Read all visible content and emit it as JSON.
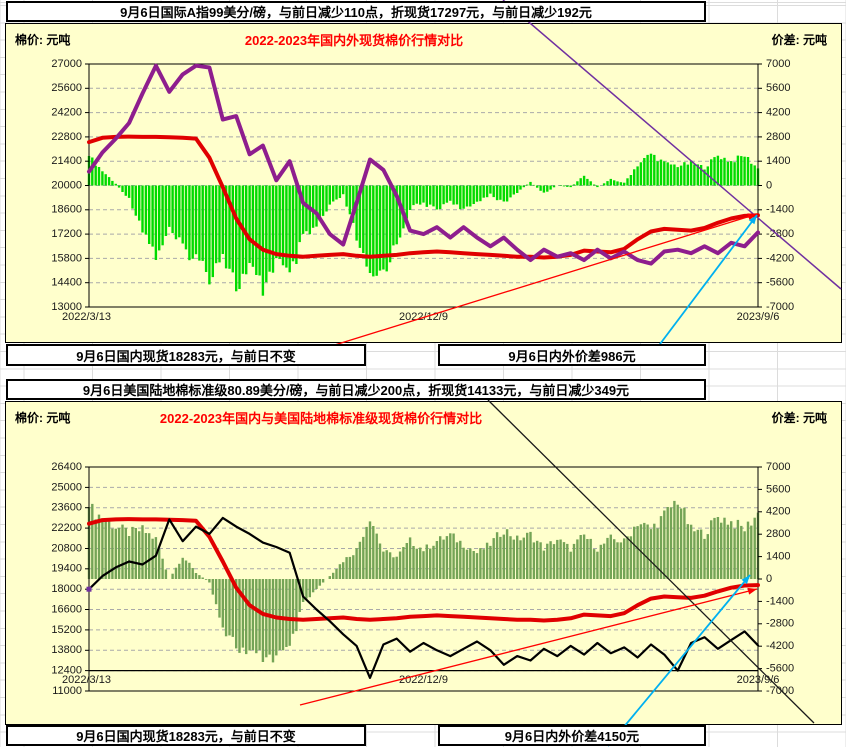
{
  "page": {
    "excel_grid_color": "#DCDCDC",
    "chart_background": "#FFFFCC",
    "title_color": "#FF0000"
  },
  "sections": [
    {
      "header": "9月6日国际A指99美分/磅，与前日减少110点，折现货17297元，与前日减少192元",
      "footer_left": "9月6日国内现货18283元，与前日不变",
      "footer_right": "9月6日内外价差986元"
    },
    {
      "header": "9月6日美国陆地棉标准级80.89美分/磅，与前日减少200点，折现货14133元，与前日减少349元",
      "footer_left": "9月6日国内现货18283元，与前日不变",
      "footer_right": "9月6日内外价差4150元"
    }
  ],
  "chart_data": [
    {
      "type": "line+bar",
      "title": "2022-2023年国内外现货棉价行情对比",
      "left_axis_label": "棉价: 元吨",
      "right_axis_label": "价差: 元吨",
      "x_ticks": [
        "2022/3/13",
        "2022/12/9",
        "2023/9/6"
      ],
      "left_axis": {
        "min": 13000,
        "max": 27000,
        "step": 1400
      },
      "right_axis": {
        "min": -7000,
        "max": 7000,
        "step": 1400
      },
      "grid": true,
      "legend_position": "none",
      "series": [
        {
          "name": "国内现货",
          "type": "line",
          "axis": "left",
          "color": "#E00000",
          "width": 4,
          "values": [
            22500,
            22750,
            22800,
            22820,
            22800,
            22800,
            22780,
            22750,
            22700,
            21600,
            19900,
            18100,
            16900,
            16300,
            16050,
            15950,
            15900,
            15950,
            16000,
            16050,
            15950,
            15900,
            15950,
            16000,
            16100,
            16150,
            16200,
            16150,
            16100,
            16050,
            16000,
            15950,
            15900,
            15900,
            15850,
            15900,
            16000,
            16250,
            16200,
            16150,
            16350,
            16900,
            17350,
            17500,
            17450,
            17400,
            17550,
            17850,
            18100,
            18250,
            18283
          ]
        },
        {
          "name": "国际A指折现货",
          "type": "line",
          "axis": "left",
          "color": "#8E1E8E",
          "width": 4,
          "values": [
            20800,
            21900,
            22700,
            23600,
            25300,
            26900,
            25400,
            26400,
            26900,
            26800,
            23800,
            24000,
            21800,
            22300,
            20300,
            21400,
            19000,
            18400,
            17200,
            16600,
            19000,
            21500,
            20900,
            19400,
            17400,
            17200,
            17600,
            17000,
            17600,
            17000,
            16500,
            17000,
            16300,
            15700,
            16300,
            15900,
            16100,
            15700,
            16300,
            15800,
            16200,
            15700,
            15500,
            16200,
            16300,
            16100,
            16500,
            16100,
            16700,
            16500,
            17297
          ]
        },
        {
          "name": "内外价差",
          "type": "bar",
          "axis": "right",
          "color": "#00DB00",
          "values": [
            1700,
            850,
            100,
            -780,
            -2500,
            -4100,
            -2620,
            -3650,
            -4200,
            -5200,
            -3900,
            -5900,
            -4900,
            -6000,
            -4250,
            -5450,
            -3100,
            -2450,
            -1200,
            -550,
            -3050,
            -5600,
            -4950,
            -3400,
            -1300,
            -1050,
            -1400,
            -850,
            -1500,
            -950,
            -500,
            -1050,
            -400,
            200,
            -450,
            0,
            -100,
            550,
            -100,
            350,
            150,
            1200,
            1850,
            1300,
            1150,
            1300,
            1050,
            1750,
            1400,
            1750,
            986
          ]
        }
      ],
      "annotations": [
        {
          "color": "#7030A0",
          "width": 1.5,
          "from": [
            503,
            0
          ],
          "to": [
            841,
            289
          ],
          "arrow": false
        },
        {
          "color": "#FF0000",
          "width": 1.3,
          "from": [
            280,
            362
          ],
          "to": [
            757,
            214
          ],
          "arrow": true
        },
        {
          "color": "#00B0F0",
          "width": 1.8,
          "from": [
            648,
            360
          ],
          "to": [
            757,
            215
          ],
          "arrow": true
        }
      ]
    },
    {
      "type": "line+bar",
      "title": "2022-2023年国内与美国陆地棉标准级现货棉价行情对比",
      "left_axis_label": "棉价: 元吨",
      "right_axis_label": "价差: 元吨",
      "x_ticks": [
        "2022/3/13",
        "2022/12/9",
        "2023/9/6"
      ],
      "left_axis": {
        "min": 11000,
        "max": 26400,
        "step": 1400,
        "axis_cross_value": 12400
      },
      "right_axis": {
        "min": -7000,
        "max": 7000,
        "step": 1400
      },
      "grid": true,
      "legend_position": "none",
      "start_marker_color": "#7030A0",
      "series": [
        {
          "name": "国内现货",
          "type": "line",
          "axis": "left",
          "color": "#E00000",
          "width": 4,
          "values": [
            22500,
            22750,
            22800,
            22820,
            22800,
            22800,
            22780,
            22750,
            22700,
            21600,
            19900,
            18100,
            16900,
            16300,
            16050,
            15950,
            15900,
            15950,
            16000,
            16050,
            15950,
            15900,
            15950,
            16000,
            16100,
            16150,
            16200,
            16150,
            16100,
            16050,
            16000,
            15950,
            15900,
            15900,
            15850,
            15900,
            16000,
            16250,
            16200,
            16150,
            16350,
            16900,
            17350,
            17500,
            17450,
            17400,
            17550,
            17850,
            18100,
            18250,
            18283
          ]
        },
        {
          "name": "美国陆地棉标准级折现货",
          "type": "line",
          "axis": "left",
          "color": "#000000",
          "width": 2.2,
          "values": [
            18000,
            18900,
            19500,
            19900,
            19700,
            20300,
            22800,
            21300,
            22300,
            21800,
            22900,
            22300,
            21800,
            21200,
            20900,
            20500,
            17500,
            16600,
            15800,
            14900,
            14100,
            11900,
            14200,
            14600,
            13700,
            14300,
            13800,
            13400,
            13900,
            14400,
            13800,
            12800,
            13400,
            13100,
            13900,
            13400,
            14100,
            13500,
            14300,
            13600,
            14000,
            13300,
            14200,
            13500,
            12400,
            14300,
            14700,
            13900,
            14500,
            15100,
            14133
          ]
        },
        {
          "name": "内外价差",
          "type": "bar",
          "axis": "right",
          "color": "#74A456",
          "values": [
            4500,
            3850,
            3300,
            2920,
            3100,
            2500,
            -20,
            1450,
            400,
            -200,
            -3000,
            -4200,
            -4900,
            -4900,
            -4850,
            -4550,
            -1600,
            -650,
            200,
            1150,
            1850,
            4000,
            1750,
            1400,
            2400,
            1850,
            2400,
            2750,
            2200,
            1650,
            2200,
            3150,
            2500,
            2800,
            1950,
            2500,
            1900,
            2750,
            1900,
            2550,
            2350,
            3600,
            3150,
            4000,
            5050,
            3100,
            2850,
            3950,
            3600,
            3150,
            4150
          ]
        }
      ],
      "annotations": [
        {
          "color": "#1A1A1A",
          "width": 1.3,
          "from": [
            488,
            400
          ],
          "to": [
            814,
            723
          ],
          "arrow": false
        },
        {
          "color": "#FF0000",
          "width": 1.3,
          "from": [
            300,
            705
          ],
          "to": [
            757,
            589
          ],
          "arrow": true
        },
        {
          "color": "#00B0F0",
          "width": 1.8,
          "from": [
            608,
            746
          ],
          "to": [
            750,
            575
          ],
          "arrow": true
        }
      ]
    }
  ]
}
